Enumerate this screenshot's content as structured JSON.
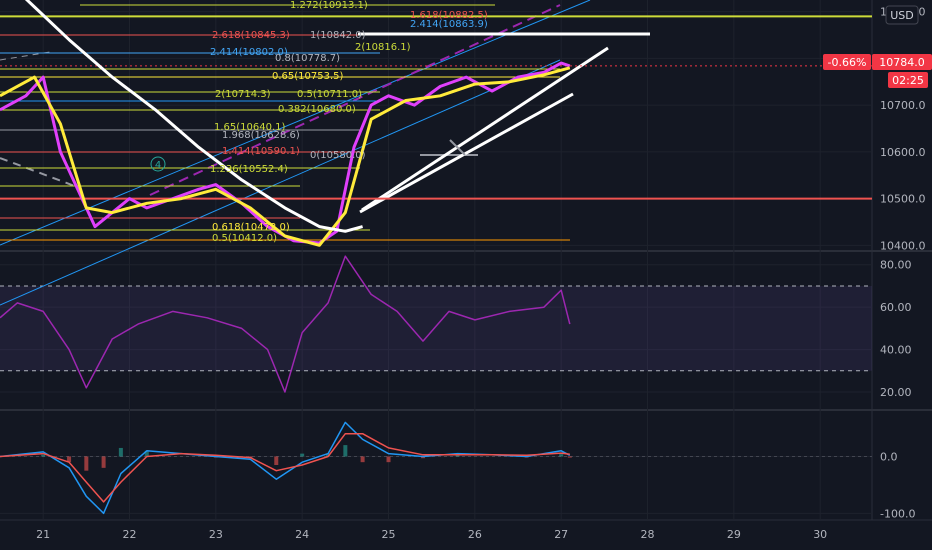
{
  "currency_button": "USD",
  "price_badges": {
    "change": "-0.66%",
    "last": "10784.0",
    "countdown": "02:25"
  },
  "fib_labels": [
    {
      "text": "1.272(10913.1)",
      "color": "#cddc39"
    },
    {
      "text": "1.618(10882.5)",
      "color": "#ef5350"
    },
    {
      "text": "2.414(10863.9)",
      "color": "#42a5f5"
    },
    {
      "text": "2.618(10845.3)",
      "color": "#ef5350"
    },
    {
      "text": "1(10842.0)",
      "color": "#b2b5be"
    },
    {
      "text": "2(10816.1)",
      "color": "#cddc39"
    },
    {
      "text": "2.414(10802.0)",
      "color": "#42a5f5"
    },
    {
      "text": "0.65(10753.5)",
      "color": "#ffeb3b"
    },
    {
      "text": "2(10714.3)",
      "color": "#cddc39"
    },
    {
      "text": "0.5(10711.0)",
      "color": "#cddc39"
    },
    {
      "text": "0.382(10680.0)",
      "color": "#cddc39"
    },
    {
      "text": "1.65(10640.1)",
      "color": "#cddc39"
    },
    {
      "text": "1.968(10628.6)",
      "color": "#b2b5be"
    },
    {
      "text": "1.414(10590.1)",
      "color": "#ef5350"
    },
    {
      "text": "0(10580.0)",
      "color": "#b2b5be"
    },
    {
      "text": "1.236(10552.4)",
      "color": "#cddc39"
    },
    {
      "text": "0.8(10778.7)",
      "color": "#b2b5be"
    },
    {
      "text": "0.618(10472.0)",
      "color": "#ffeb3b"
    },
    {
      "text": "0.5(10412.0)",
      "color": "#cddc39"
    }
  ],
  "elliott_label": "4",
  "chart_data": [
    {
      "type": "line",
      "panel": "price",
      "x_ticks": [
        "21",
        "22",
        "23",
        "24",
        "25",
        "26",
        "27",
        "28",
        "29",
        "30"
      ],
      "y_ticks": [
        10400.0,
        10500.0,
        10600.0,
        10700.0,
        10800.0,
        10900.0
      ],
      "y_tick_labels": [
        "10400.0",
        "10500.0",
        "10600.0",
        "10700.0",
        "10800.0",
        "10900.0"
      ],
      "ylim": [
        10390,
        10925
      ],
      "xlim": [
        20.5,
        30.6
      ],
      "horizontal_lines": [
        {
          "y": 10500.0,
          "color": "#ef5350"
        },
        {
          "y": 10890.0,
          "color": "#cddc39"
        }
      ],
      "last_price": 10784.0,
      "series": [
        {
          "values": [
            [
              20.5,
              10690
            ],
            [
              20.8,
              10720
            ],
            [
              21.0,
              10760
            ],
            [
              21.2,
              10600
            ],
            [
              21.4,
              10520
            ],
            [
              21.6,
              10440
            ],
            [
              21.8,
              10470
            ],
            [
              22.0,
              10500
            ],
            [
              22.2,
              10480
            ],
            [
              22.5,
              10500
            ],
            [
              22.8,
              10520
            ],
            [
              23.0,
              10530
            ],
            [
              23.3,
              10490
            ],
            [
              23.6,
              10440
            ],
            [
              23.9,
              10410
            ],
            [
              24.2,
              10405
            ],
            [
              24.4,
              10430
            ],
            [
              24.6,
              10610
            ],
            [
              24.8,
              10700
            ],
            [
              25.0,
              10720
            ],
            [
              25.3,
              10700
            ],
            [
              25.6,
              10740
            ],
            [
              25.9,
              10760
            ],
            [
              26.2,
              10730
            ],
            [
              26.5,
              10760
            ],
            [
              26.8,
              10770
            ],
            [
              27.0,
              10790
            ],
            [
              27.1,
              10784
            ]
          ],
          "color": "#e040fb"
        },
        {
          "values": [
            [
              20.5,
              10720
            ],
            [
              20.9,
              10760
            ],
            [
              21.2,
              10660
            ],
            [
              21.5,
              10480
            ],
            [
              21.8,
              10470
            ],
            [
              22.2,
              10490
            ],
            [
              22.6,
              10500
            ],
            [
              23.0,
              10520
            ],
            [
              23.4,
              10480
            ],
            [
              23.8,
              10420
            ],
            [
              24.2,
              10400
            ],
            [
              24.5,
              10470
            ],
            [
              24.8,
              10670
            ],
            [
              25.2,
              10710
            ],
            [
              25.6,
              10720
            ],
            [
              26.0,
              10745
            ],
            [
              26.4,
              10750
            ],
            [
              26.8,
              10765
            ],
            [
              27.1,
              10780
            ]
          ],
          "color": "#ffeb3b"
        },
        {
          "values": [
            [
              20.5,
              10980
            ],
            [
              20.9,
              10910
            ],
            [
              21.3,
              10840
            ],
            [
              21.8,
              10760
            ],
            [
              22.3,
              10690
            ],
            [
              22.8,
              10610
            ],
            [
              23.3,
              10540
            ],
            [
              23.8,
              10480
            ],
            [
              24.2,
              10440
            ],
            [
              24.5,
              10430
            ],
            [
              24.7,
              10440
            ]
          ],
          "color": "#ffffff"
        }
      ]
    },
    {
      "type": "line",
      "panel": "rsi",
      "y_ticks": [
        20.0,
        40.0,
        60.0,
        80.0
      ],
      "y_tick_labels": [
        "20.00",
        "40.00",
        "60.00",
        "80.00"
      ],
      "bands": [
        70,
        30
      ],
      "ylim": [
        12,
        86
      ],
      "series": [
        {
          "values": [
            [
              20.5,
              55
            ],
            [
              20.7,
              62
            ],
            [
              21.0,
              58
            ],
            [
              21.3,
              40
            ],
            [
              21.5,
              22
            ],
            [
              21.8,
              45
            ],
            [
              22.1,
              52
            ],
            [
              22.5,
              58
            ],
            [
              22.9,
              55
            ],
            [
              23.3,
              50
            ],
            [
              23.6,
              40
            ],
            [
              23.8,
              20
            ],
            [
              24.0,
              48
            ],
            [
              24.3,
              62
            ],
            [
              24.5,
              84
            ],
            [
              24.8,
              66
            ],
            [
              25.1,
              58
            ],
            [
              25.4,
              44
            ],
            [
              25.7,
              58
            ],
            [
              26.0,
              54
            ],
            [
              26.4,
              58
            ],
            [
              26.8,
              60
            ],
            [
              27.0,
              68
            ],
            [
              27.1,
              52
            ]
          ],
          "color": "#9c27b0"
        }
      ]
    },
    {
      "type": "line",
      "panel": "macd",
      "y_ticks": [
        -100.0,
        0.0
      ],
      "y_tick_labels": [
        "-100.0",
        "0.0"
      ],
      "ylim": [
        -110,
        80
      ],
      "series": [
        {
          "values": [
            [
              20.5,
              0
            ],
            [
              21.0,
              8
            ],
            [
              21.3,
              -20
            ],
            [
              21.5,
              -70
            ],
            [
              21.7,
              -100
            ],
            [
              21.9,
              -30
            ],
            [
              22.2,
              10
            ],
            [
              22.6,
              5
            ],
            [
              23.0,
              0
            ],
            [
              23.4,
              -5
            ],
            [
              23.7,
              -40
            ],
            [
              24.0,
              -10
            ],
            [
              24.3,
              5
            ],
            [
              24.5,
              60
            ],
            [
              24.7,
              30
            ],
            [
              25.0,
              5
            ],
            [
              25.4,
              0
            ],
            [
              25.8,
              5
            ],
            [
              26.2,
              3
            ],
            [
              26.6,
              0
            ],
            [
              27.0,
              10
            ],
            [
              27.1,
              2
            ]
          ],
          "color": "#2196f3"
        },
        {
          "values": [
            [
              20.5,
              0
            ],
            [
              21.0,
              5
            ],
            [
              21.3,
              -10
            ],
            [
              21.5,
              -45
            ],
            [
              21.7,
              -80
            ],
            [
              21.9,
              -45
            ],
            [
              22.2,
              0
            ],
            [
              22.6,
              5
            ],
            [
              23.0,
              2
            ],
            [
              23.4,
              -2
            ],
            [
              23.7,
              -25
            ],
            [
              24.0,
              -15
            ],
            [
              24.3,
              0
            ],
            [
              24.5,
              40
            ],
            [
              24.7,
              40
            ],
            [
              25.0,
              15
            ],
            [
              25.4,
              3
            ],
            [
              25.8,
              3
            ],
            [
              26.2,
              3
            ],
            [
              26.6,
              2
            ],
            [
              27.0,
              6
            ],
            [
              27.1,
              4
            ]
          ],
          "color": "#ef5350"
        }
      ]
    }
  ]
}
